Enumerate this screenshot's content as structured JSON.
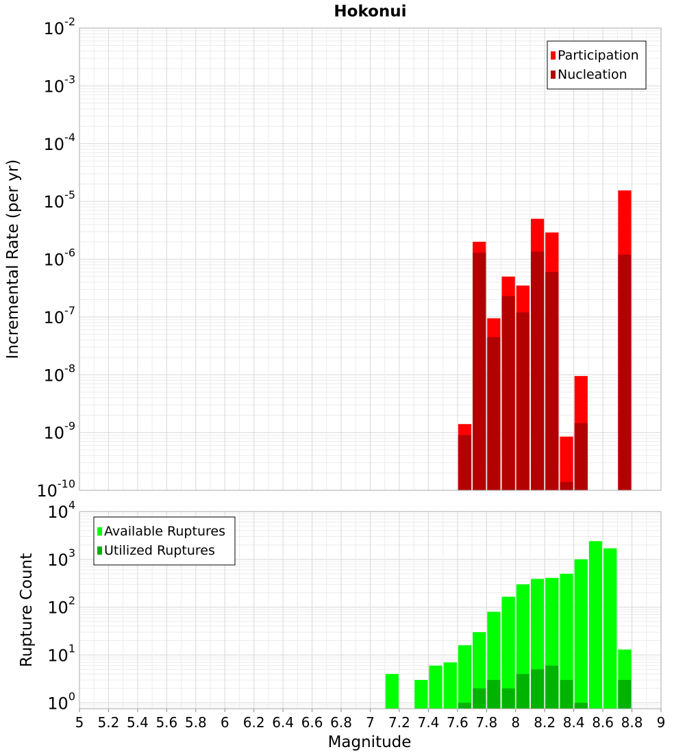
{
  "chart_data": [
    {
      "type": "bar",
      "title": "Hokonui",
      "ylabel": "Incremental Rate (per yr)",
      "xlabel": "",
      "yscale": "log",
      "ylim": [
        1e-10,
        0.01
      ],
      "xlim": [
        5,
        9
      ],
      "y_tick_exponents": [
        -10,
        -9,
        -8,
        -7,
        -6,
        -5,
        -4,
        -3,
        -2
      ],
      "grid": true,
      "legend_position": "top-right",
      "bar_width": 0.1,
      "series": [
        {
          "name": "Participation",
          "color": "#ff0000",
          "x": [
            7.65,
            7.75,
            7.85,
            7.95,
            8.05,
            8.15,
            8.25,
            8.35,
            8.45,
            8.75
          ],
          "values": [
            1.4e-09,
            2e-06,
            9.5e-08,
            5e-07,
            3.5e-07,
            5e-06,
            2.9e-06,
            8.5e-10,
            9.5e-09,
            1.55e-05
          ]
        },
        {
          "name": "Nucleation",
          "color": "#b30000",
          "x": [
            7.65,
            7.75,
            7.85,
            7.95,
            8.05,
            8.15,
            8.25,
            8.35,
            8.45,
            8.75
          ],
          "values": [
            9e-10,
            1.3e-06,
            4.5e-08,
            2.3e-07,
            1.2e-07,
            1.35e-06,
            6e-07,
            1.4e-10,
            1.45e-09,
            1.2e-06
          ]
        }
      ]
    },
    {
      "type": "bar",
      "title": "",
      "xlabel": "Magnitude",
      "ylabel": "Rupture Count",
      "yscale": "log",
      "ylim": [
        0.75,
        10000
      ],
      "xlim": [
        5,
        9
      ],
      "y_tick_exponents": [
        0,
        1,
        2,
        3,
        4
      ],
      "x_ticks": [
        "5",
        "5.2",
        "5.4",
        "5.6",
        "5.8",
        "6",
        "6.2",
        "6.4",
        "6.6",
        "6.8",
        "7",
        "7.2",
        "7.4",
        "7.6",
        "7.8",
        "8",
        "8.2",
        "8.4",
        "8.6",
        "8.8",
        "9"
      ],
      "grid": true,
      "legend_position": "top-left",
      "bar_width": 0.1,
      "series": [
        {
          "name": "Available Ruptures",
          "color": "#00ff00",
          "x": [
            7.15,
            7.35,
            7.45,
            7.55,
            7.65,
            7.75,
            7.85,
            7.95,
            8.05,
            8.15,
            8.25,
            8.35,
            8.45,
            8.55,
            8.65,
            8.75
          ],
          "values": [
            4,
            3,
            6,
            7,
            16,
            30,
            80,
            165,
            300,
            390,
            410,
            500,
            1000,
            2400,
            1700,
            13
          ]
        },
        {
          "name": "Utilized Ruptures",
          "color": "#00b300",
          "x": [
            7.65,
            7.75,
            7.85,
            7.95,
            8.05,
            8.15,
            8.25,
            8.35,
            8.45,
            8.75
          ],
          "values": [
            1,
            2,
            3,
            2,
            4,
            5,
            6,
            3,
            1,
            3
          ]
        }
      ]
    }
  ]
}
